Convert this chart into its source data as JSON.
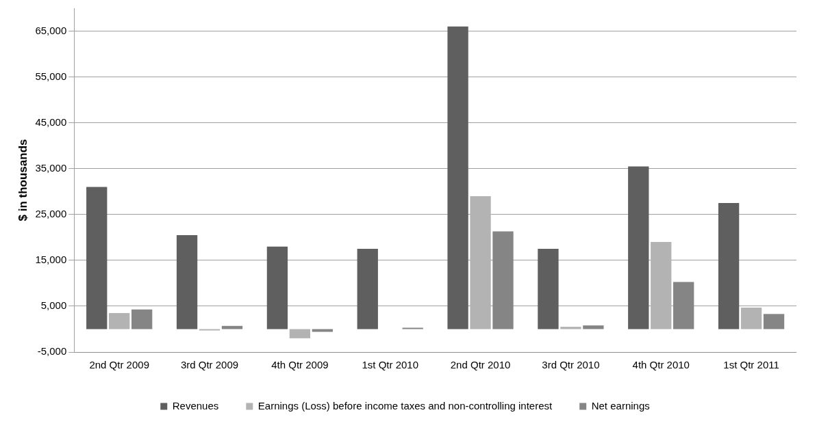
{
  "chart_data": {
    "type": "bar",
    "ylabel": "$ in thousands",
    "categories": [
      "2nd Qtr 2009",
      "3rd Qtr 2009",
      "4th Qtr 2009",
      "1st Qtr 2010",
      "2nd Qtr 2010",
      "3rd Qtr 2010",
      "4th Qtr 2010",
      "1st Qtr 2011"
    ],
    "series": [
      {
        "name": "Revenues",
        "color": "#5f5f5f",
        "values": [
          31000,
          20500,
          18000,
          17500,
          66000,
          17500,
          35500,
          27500
        ]
      },
      {
        "name": "Earnings (Loss) before income taxes and non-controlling interest",
        "color": "#b3b3b3",
        "values": [
          3500,
          -300,
          -2000,
          0,
          29000,
          500,
          19000,
          4700
        ]
      },
      {
        "name": "Net earnings",
        "color": "#858585",
        "values": [
          4300,
          700,
          -600,
          300,
          21300,
          800,
          10300,
          3300
        ]
      }
    ],
    "ylim": [
      -5000,
      70000
    ],
    "yticks": [
      {
        "value": -5000,
        "label": "-5,000"
      },
      {
        "value": 5000,
        "label": "5,000"
      },
      {
        "value": 15000,
        "label": "15,000"
      },
      {
        "value": 25000,
        "label": "25,000"
      },
      {
        "value": 35000,
        "label": "35,000"
      },
      {
        "value": 45000,
        "label": "45,000"
      },
      {
        "value": 55000,
        "label": "55,000"
      },
      {
        "value": 65000,
        "label": "65,000"
      }
    ],
    "grid": "y",
    "legend": "bottom"
  }
}
